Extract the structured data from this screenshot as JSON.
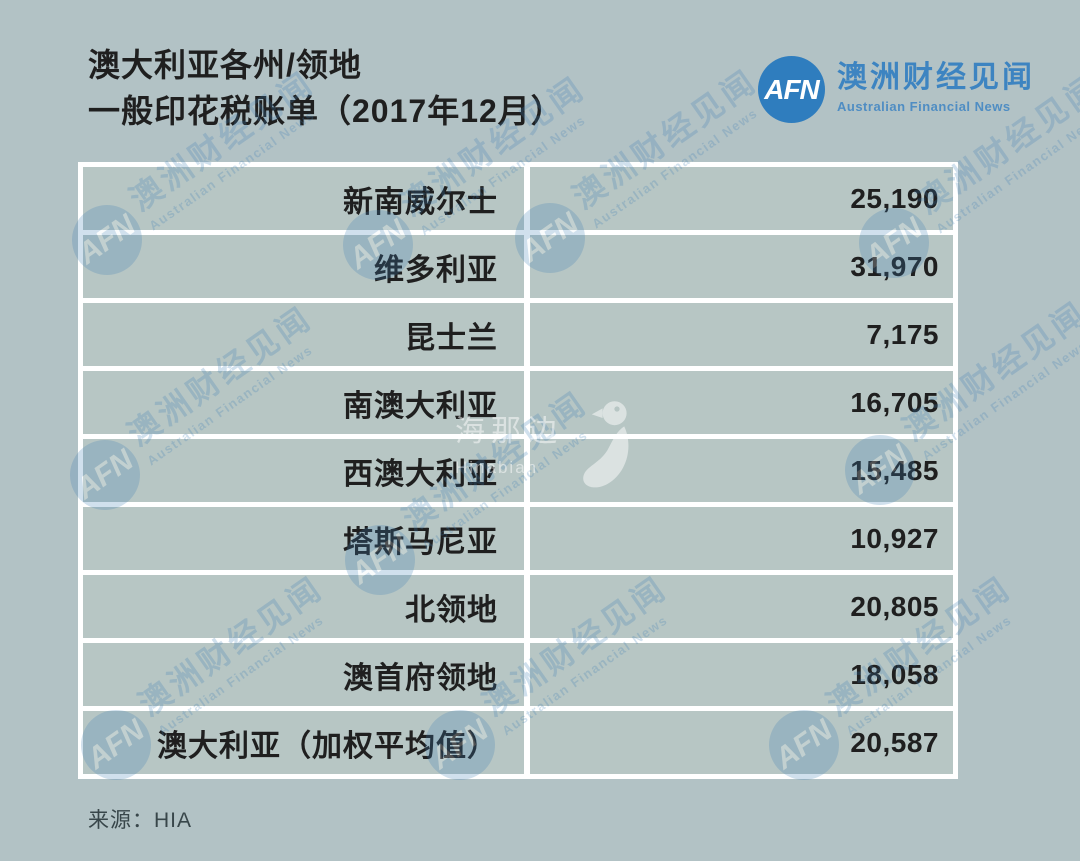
{
  "title": {
    "line1": "澳大利亚各州/领地",
    "line2": "一般印花税账单（2017年12月）"
  },
  "logo": {
    "abbr": "AFN",
    "name_zh": "澳洲财经见闻",
    "name_en": "Australian Financial News"
  },
  "table": {
    "rows": [
      {
        "label": "新南威尔士",
        "value": "25,190"
      },
      {
        "label": "维多利亚",
        "value": "31,970"
      },
      {
        "label": "昆士兰",
        "value": "7,175"
      },
      {
        "label": "南澳大利亚",
        "value": "16,705"
      },
      {
        "label": "西澳大利亚",
        "value": "15,485"
      },
      {
        "label": "塔斯马尼亚",
        "value": "10,927"
      },
      {
        "label": "北领地",
        "value": "20,805"
      },
      {
        "label": "澳首府领地",
        "value": "18,058"
      },
      {
        "label": "澳大利亚（加权平均值）",
        "value": "20,587"
      }
    ]
  },
  "source": "来源：HIA",
  "watermarks": {
    "afn_abbr": "AFN",
    "afn_zh": "澳洲财经见闻",
    "afn_en": "Australian Financial News",
    "center_zh": "海那边",
    "center_en": "Hinabian"
  },
  "colors": {
    "page_bg": "#b2c2c5",
    "cell_bg": "#b7c6c4",
    "border_white": "#ffffff",
    "logo_blue": "#2f7dbe",
    "logo_text_blue": "#3d84c1",
    "text_dark": "#1f1f1f",
    "watermark_blue": "#3f7fb5"
  },
  "chart_data": {
    "type": "table",
    "title": "澳大利亚各州/领地 一般印花税账单（2017年12月）",
    "categories": [
      "新南威尔士",
      "维多利亚",
      "昆士兰",
      "南澳大利亚",
      "西澳大利亚",
      "塔斯马尼亚",
      "北领地",
      "澳首府领地",
      "澳大利亚（加权平均值）"
    ],
    "values": [
      25190,
      31970,
      7175,
      16705,
      15485,
      10927,
      20805,
      18058,
      20587
    ],
    "source": "HIA",
    "layout": "two-column table, labels right-aligned, values right-aligned, white separators on gray-teal background"
  }
}
